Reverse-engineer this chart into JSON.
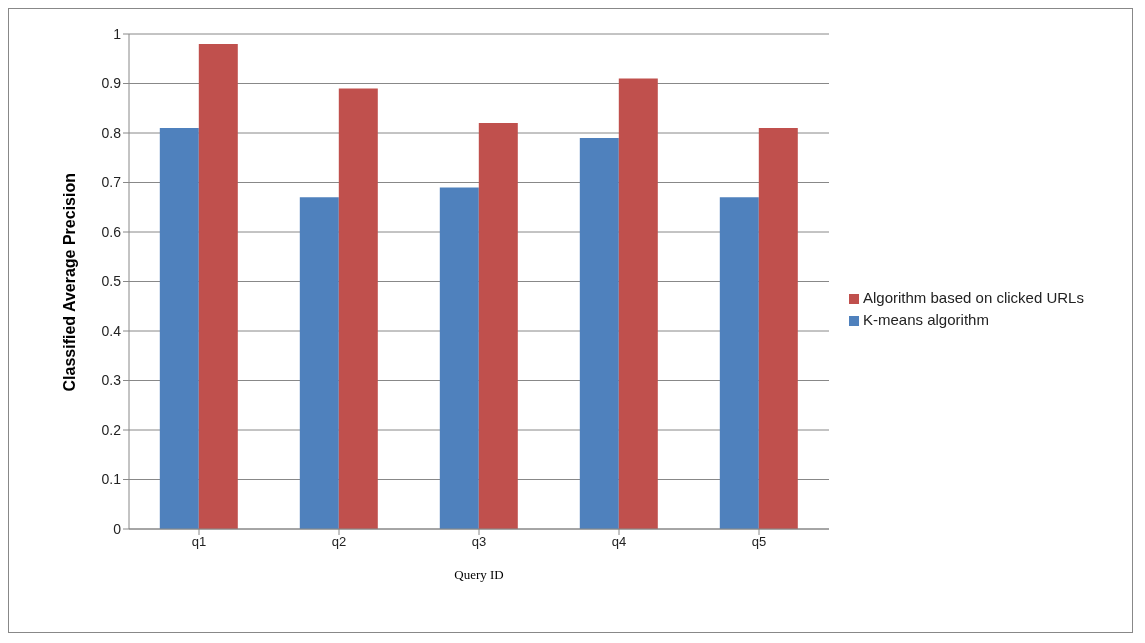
{
  "chart_data": {
    "type": "bar",
    "xlabel": "Query ID",
    "ylabel": "Classified Average Precision",
    "categories": [
      "q1",
      "q2",
      "q3",
      "q4",
      "q5"
    ],
    "series": [
      {
        "name": "K-means algorithm",
        "color": "#4f81bd",
        "values": [
          0.81,
          0.67,
          0.69,
          0.79,
          0.67
        ]
      },
      {
        "name": "Algorithm based on clicked URLs",
        "color": "#c0504d",
        "values": [
          0.98,
          0.89,
          0.82,
          0.91,
          0.81
        ]
      }
    ],
    "ylim": [
      0,
      1
    ],
    "yticks": [
      0,
      0.1,
      0.2,
      0.3,
      0.4,
      0.5,
      0.6,
      0.7,
      0.8,
      0.9,
      1
    ],
    "grid": "y",
    "legend": "right"
  }
}
